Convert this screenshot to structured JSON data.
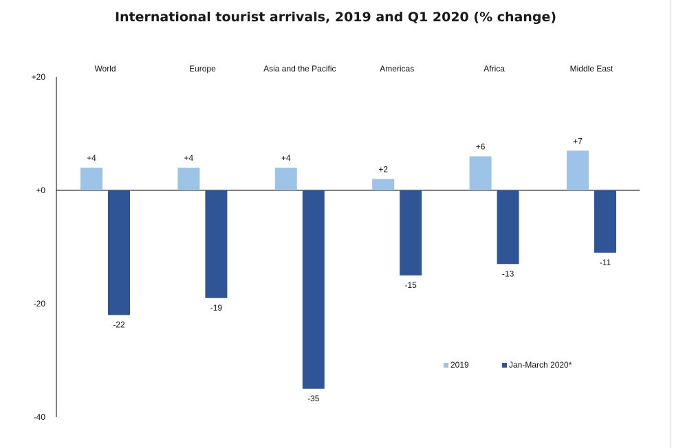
{
  "chart_data": {
    "type": "bar",
    "title": "International tourist arrivals, 2019 and Q1 2020 (% change)",
    "categories": [
      "World",
      "Europe",
      "Asia and the Pacific",
      "Americas",
      "Africa",
      "Middle East"
    ],
    "series": [
      {
        "name": "2019",
        "values": [
          4,
          4,
          4,
          2,
          6,
          7
        ],
        "labels": [
          "+4",
          "+4",
          "+4",
          "+2",
          "+6",
          "+7"
        ],
        "color": "#9dc3e6"
      },
      {
        "name": "Jan-March 2020*",
        "values": [
          -22,
          -19,
          -35,
          -15,
          -13,
          -11
        ],
        "labels": [
          "-22",
          "-19",
          "-35",
          "-15",
          "-13",
          "-11"
        ],
        "color": "#2f5597"
      }
    ],
    "y_ticks": [
      {
        "value": 20,
        "label": "+20"
      },
      {
        "value": 0,
        "label": "+0"
      },
      {
        "value": -20,
        "label": "-20"
      },
      {
        "value": -40,
        "label": "-40"
      }
    ],
    "ylim": [
      -40,
      20
    ],
    "grid": false,
    "legend_position": "bottom-right"
  }
}
